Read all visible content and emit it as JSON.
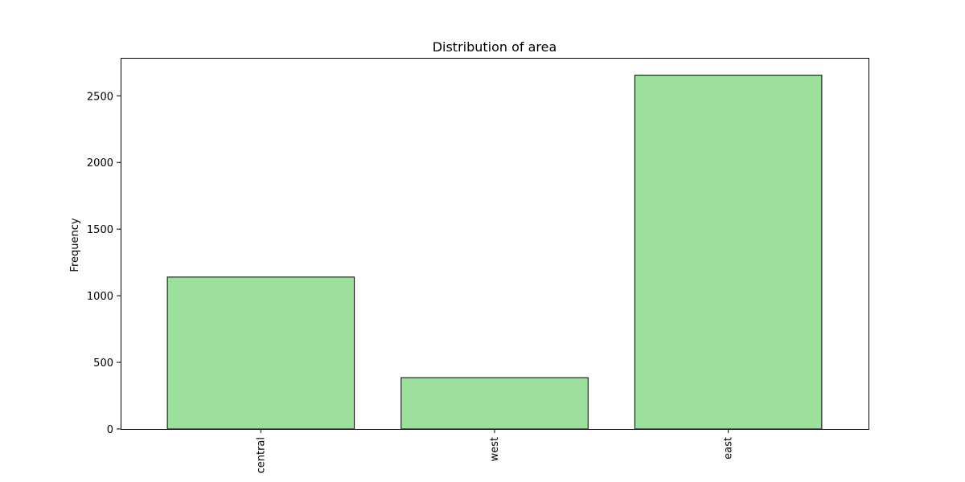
{
  "chart_data": {
    "type": "bar",
    "title": "Distribution of area",
    "xlabel": "",
    "ylabel": "Frequency",
    "categories": [
      "central",
      "west",
      "east"
    ],
    "values": [
      1140,
      385,
      2655
    ],
    "ylim": [
      0,
      2785
    ],
    "yticks": [
      0,
      500,
      1000,
      1500,
      2000,
      2500
    ],
    "ytick_labels": [
      "0",
      "500",
      "1000",
      "1500",
      "2000",
      "2500"
    ],
    "colors": {
      "bar_fill": "#9de09e",
      "bar_edge": "#000000"
    },
    "grid": false,
    "legend": "none"
  }
}
